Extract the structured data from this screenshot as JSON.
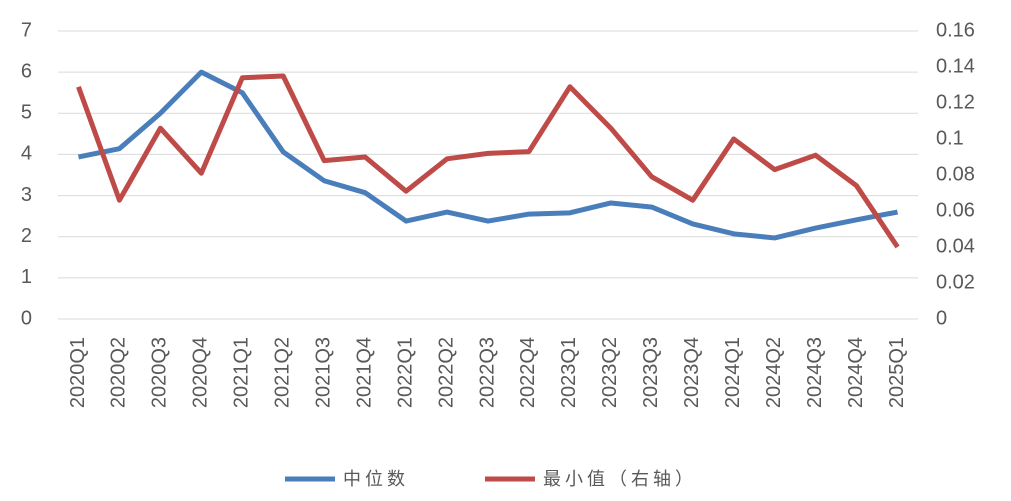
{
  "chart_data": {
    "type": "line",
    "categories": [
      "2020Q1",
      "2020Q2",
      "2020Q3",
      "2020Q4",
      "2021Q1",
      "2021Q2",
      "2021Q3",
      "2021Q4",
      "2022Q1",
      "2022Q2",
      "2022Q3",
      "2022Q4",
      "2023Q1",
      "2023Q2",
      "2023Q3",
      "2023Q4",
      "2024Q1",
      "2024Q2",
      "2024Q3",
      "2024Q4",
      "2025Q1"
    ],
    "series": [
      {
        "name": "中位数",
        "color": "#4a7ebb",
        "values": [
          3.94,
          4.14,
          5.0,
          6.0,
          5.5,
          4.06,
          3.36,
          3.07,
          2.38,
          2.6,
          2.38,
          2.55,
          2.58,
          2.82,
          2.72,
          2.31,
          2.07,
          1.97,
          2.21,
          2.41,
          2.6
        ]
      },
      {
        "name": "最小值（右轴）",
        "color": "#be4b48",
        "axis": "y2",
        "values": [
          0.129,
          0.066,
          0.106,
          0.081,
          0.134,
          0.135,
          0.088,
          0.09,
          0.071,
          0.089,
          0.092,
          0.093,
          0.129,
          0.106,
          0.079,
          0.066,
          0.1,
          0.083,
          0.091,
          0.074,
          0.04
        ]
      }
    ],
    "ylim": [
      0,
      7
    ],
    "yticks": [
      0,
      1,
      2,
      3,
      4,
      5,
      6,
      7
    ],
    "y2lim": [
      0,
      0.16
    ],
    "y2ticks": [
      0,
      0.02,
      0.04,
      0.06,
      0.08,
      0.1,
      0.12,
      0.14,
      0.16
    ],
    "grid": true
  }
}
